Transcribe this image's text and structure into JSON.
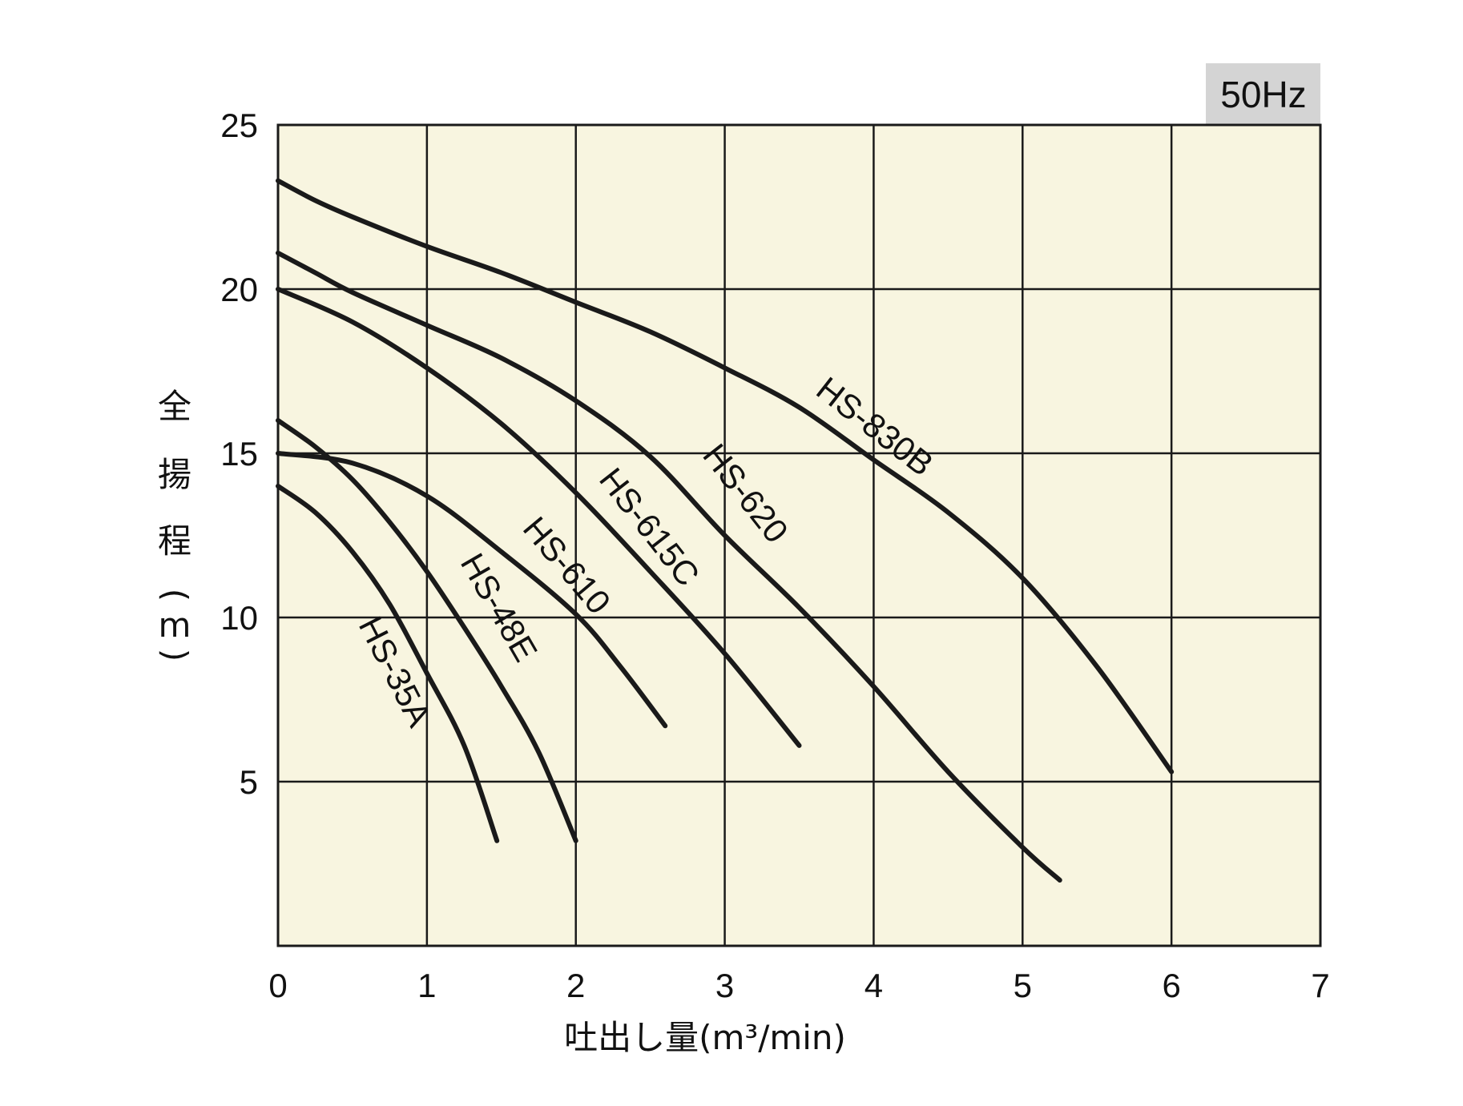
{
  "chart_data": {
    "type": "line",
    "frequency_badge": "50Hz",
    "ylabel_chars": [
      "全",
      "揚",
      "程",
      "(",
      "m",
      ")"
    ],
    "xlabel": "吐出し量(m³/min)",
    "xlim": [
      0,
      7
    ],
    "ylim": [
      0,
      25
    ],
    "xticks": [
      "0",
      "1",
      "2",
      "3",
      "4",
      "5",
      "6",
      "7"
    ],
    "yticks": [
      "5",
      "10",
      "15",
      "20",
      "25"
    ],
    "grid": true,
    "background": "#f8f5e0",
    "series": [
      {
        "name": "HS-830B",
        "x": [
          0,
          0.25,
          0.5,
          1,
          1.5,
          2,
          2.5,
          3,
          3.5,
          4,
          4.5,
          5,
          5.5,
          6
        ],
        "y": [
          23.3,
          22.7,
          22.2,
          21.3,
          20.5,
          19.6,
          18.7,
          17.6,
          16.4,
          14.8,
          13.2,
          11.2,
          8.5,
          5.3
        ]
      },
      {
        "name": "HS-620",
        "x": [
          0,
          0.25,
          0.5,
          1,
          1.5,
          2,
          2.5,
          3,
          3.5,
          4,
          4.5,
          5,
          5.25
        ],
        "y": [
          21.1,
          20.5,
          19.9,
          18.9,
          17.9,
          16.6,
          14.9,
          12.5,
          10.3,
          7.9,
          5.3,
          3.0,
          2.0
        ]
      },
      {
        "name": "HS-615C",
        "x": [
          0,
          0.5,
          1,
          1.5,
          2,
          2.5,
          3,
          3.5
        ],
        "y": [
          20.0,
          19.0,
          17.6,
          15.9,
          13.8,
          11.4,
          8.9,
          6.1
        ]
      },
      {
        "name": "HS-610",
        "x": [
          0,
          0.5,
          1,
          1.5,
          2,
          2.3,
          2.6
        ],
        "y": [
          15.0,
          14.7,
          13.7,
          12.0,
          10.1,
          8.5,
          6.7
        ]
      },
      {
        "name": "HS-48E",
        "x": [
          0,
          0.25,
          0.5,
          0.75,
          1,
          1.25,
          1.5,
          1.75,
          2
        ],
        "y": [
          16.0,
          15.2,
          14.2,
          12.9,
          11.4,
          9.7,
          7.9,
          5.9,
          3.2
        ]
      },
      {
        "name": "HS-35A",
        "x": [
          0,
          0.25,
          0.5,
          0.75,
          1,
          1.25,
          1.47
        ],
        "y": [
          14.0,
          13.2,
          12.0,
          10.4,
          8.3,
          6.1,
          3.2
        ]
      }
    ]
  }
}
